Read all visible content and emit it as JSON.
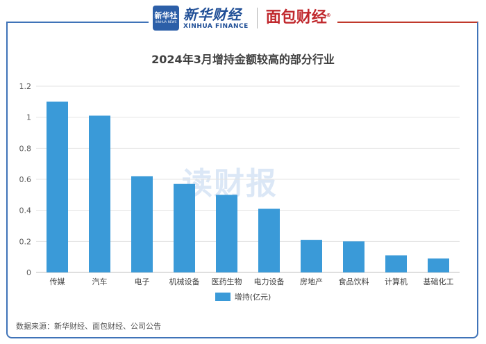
{
  "header": {
    "logo_text": "新华社",
    "logo_sub": "XINHUA NEWS",
    "brand_cn": "新华财经",
    "brand_en": "XINHUA FINANCE",
    "brand2": "面包财经",
    "brand2_mark": "®"
  },
  "watermark": "读财报",
  "source": "数据来源：新华财经、面包财经、公司公告",
  "colors": {
    "bar": "#3a9ad8",
    "frame_left": "#3f73b8",
    "frame_right": "#c0392b",
    "grid": "#e3e3e3"
  },
  "chart_data": {
    "type": "bar",
    "title": "2024年3月增持金额较高的部分行业",
    "categories": [
      "传媒",
      "汽车",
      "电子",
      "机械设备",
      "医药生物",
      "电力设备",
      "房地产",
      "食品饮料",
      "计算机",
      "基础化工"
    ],
    "series": [
      {
        "name": "增持(亿元)",
        "values": [
          1.1,
          1.01,
          0.62,
          0.57,
          0.5,
          0.41,
          0.21,
          0.2,
          0.11,
          0.09
        ]
      }
    ],
    "ylim": [
      0,
      1.2
    ],
    "yticks": [
      "0",
      "0.2",
      "0.4",
      "0.6",
      "0.8",
      "1",
      "1.2"
    ],
    "ytick_values": [
      0,
      0.2,
      0.4,
      0.6,
      0.8,
      1,
      1.2
    ],
    "grid": true,
    "legend": "bottom"
  }
}
